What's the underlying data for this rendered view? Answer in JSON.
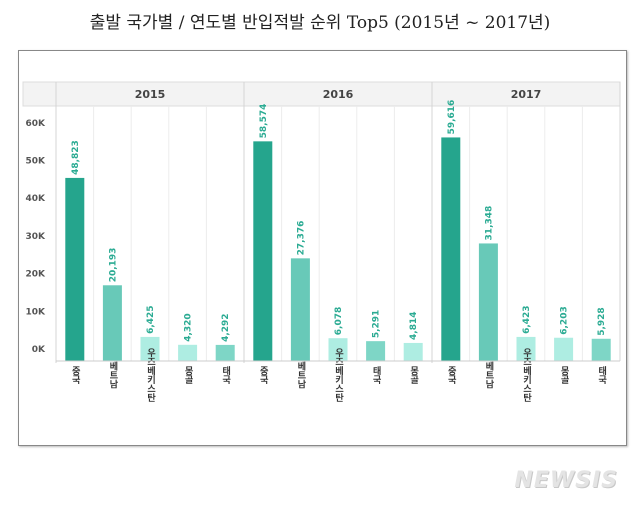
{
  "title": "출발 국가별 / 연도별 반입적발 순위 Top5 (2015년 ~ 2017년)",
  "watermark": "NEWSIS",
  "chart_data": {
    "type": "bar",
    "title": "출발 국가별 / 연도별 반입적발 순위 Top5 (2015년 ~ 2017년)",
    "ylim": [
      0,
      60000
    ],
    "yticks": [
      "0K",
      "10K",
      "20K",
      "30K",
      "40K",
      "50K",
      "60K"
    ],
    "grid": true,
    "groups": [
      {
        "year": "2015",
        "categories": [
          "중국",
          "베트남",
          "우즈베키스탄",
          "몽골",
          "태국"
        ],
        "values": [
          48823,
          20193,
          6425,
          4320,
          4292
        ],
        "labels": [
          "48,823",
          "20,193",
          "6,425",
          "4,320",
          "4,292"
        ]
      },
      {
        "year": "2016",
        "categories": [
          "중국",
          "베트남",
          "우즈베키스탄",
          "태국",
          "몽골"
        ],
        "values": [
          58574,
          27376,
          6078,
          5291,
          4814
        ],
        "labels": [
          "58,574",
          "27,376",
          "6,078",
          "5,291",
          "4,814"
        ]
      },
      {
        "year": "2017",
        "categories": [
          "중국",
          "베트남",
          "우즈베키스탄",
          "몽골",
          "태국"
        ],
        "values": [
          59616,
          31348,
          6423,
          6203,
          5928
        ],
        "labels": [
          "59,616",
          "31,348",
          "6,423",
          "6,203",
          "5,928"
        ]
      }
    ],
    "colors": {
      "중국": "#25a58d",
      "베트남": "#68c9b8",
      "우즈베키스탄": "#aeede2",
      "몽골": "#aeede2",
      "태국": "#7ed6c6"
    },
    "label_color": "#2bab93"
  }
}
